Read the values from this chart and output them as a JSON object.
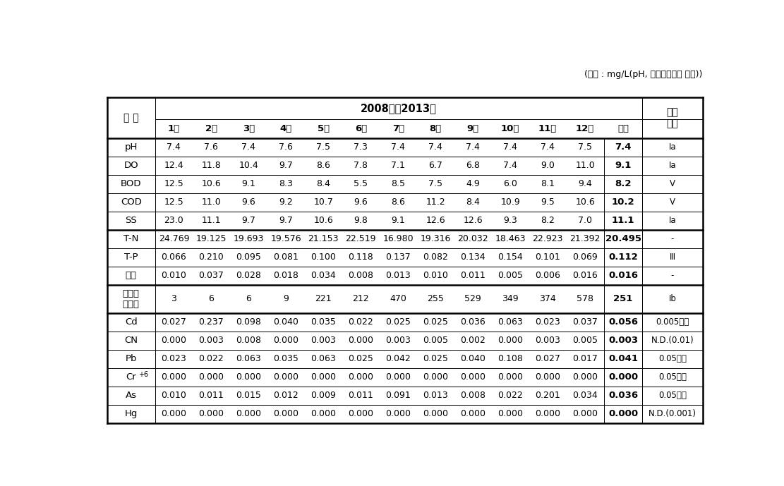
{
  "title_note": "(단위 : mg/L(pH, 총대장균군수 제외))",
  "header_year": "2008년＾2013년",
  "col_header_left": "구 분",
  "col_months": [
    "1월",
    "2월",
    "3월",
    "4월",
    "5월",
    "6월",
    "7월",
    "8월",
    "9월",
    "10월",
    "11월",
    "12월",
    "평균"
  ],
  "col_env": "환경\n기준",
  "rows": [
    [
      "pH",
      "7.4",
      "7.6",
      "7.4",
      "7.6",
      "7.5",
      "7.3",
      "7.4",
      "7.4",
      "7.4",
      "7.4",
      "7.4",
      "7.5",
      "7.4",
      "Ⅰa"
    ],
    [
      "DO",
      "12.4",
      "11.8",
      "10.4",
      "9.7",
      "8.6",
      "7.8",
      "7.1",
      "6.7",
      "6.8",
      "7.4",
      "9.0",
      "11.0",
      "9.1",
      "Ⅰa"
    ],
    [
      "BOD",
      "12.5",
      "10.6",
      "9.1",
      "8.3",
      "8.4",
      "5.5",
      "8.5",
      "7.5",
      "4.9",
      "6.0",
      "8.1",
      "9.4",
      "8.2",
      "V"
    ],
    [
      "COD",
      "12.5",
      "11.0",
      "9.6",
      "9.2",
      "10.7",
      "9.6",
      "8.6",
      "11.2",
      "8.4",
      "10.9",
      "9.5",
      "10.6",
      "10.2",
      "V"
    ],
    [
      "SS",
      "23.0",
      "11.1",
      "9.7",
      "9.7",
      "10.6",
      "9.8",
      "9.1",
      "12.6",
      "12.6",
      "9.3",
      "8.2",
      "7.0",
      "11.1",
      "Ⅰa"
    ],
    [
      "T-N",
      "24.769",
      "19.125",
      "19.693",
      "19.576",
      "21.153",
      "22.519",
      "16.980",
      "19.316",
      "20.032",
      "18.463",
      "22.923",
      "21.392",
      "20.495",
      "-"
    ],
    [
      "T-P",
      "0.066",
      "0.210",
      "0.095",
      "0.081",
      "0.100",
      "0.118",
      "0.137",
      "0.082",
      "0.134",
      "0.154",
      "0.101",
      "0.069",
      "0.112",
      "Ⅲ"
    ],
    [
      "페놀",
      "0.010",
      "0.037",
      "0.028",
      "0.018",
      "0.034",
      "0.008",
      "0.013",
      "0.010",
      "0.011",
      "0.005",
      "0.006",
      "0.016",
      "0.016",
      "-"
    ],
    [
      "총대장\n균군수",
      "3",
      "6",
      "6",
      "9",
      "221",
      "212",
      "470",
      "255",
      "529",
      "349",
      "374",
      "578",
      "251",
      "Ⅰb"
    ],
    [
      "Cd",
      "0.027",
      "0.237",
      "0.098",
      "0.040",
      "0.035",
      "0.022",
      "0.025",
      "0.025",
      "0.036",
      "0.063",
      "0.023",
      "0.037",
      "0.056",
      "0.005이하"
    ],
    [
      "CN",
      "0.000",
      "0.003",
      "0.008",
      "0.000",
      "0.003",
      "0.000",
      "0.003",
      "0.005",
      "0.002",
      "0.000",
      "0.003",
      "0.005",
      "0.003",
      "N.D.(0.01)"
    ],
    [
      "Pb",
      "0.023",
      "0.022",
      "0.063",
      "0.035",
      "0.063",
      "0.025",
      "0.042",
      "0.025",
      "0.040",
      "0.108",
      "0.027",
      "0.017",
      "0.041",
      "0.05이하"
    ],
    [
      "Cr+6",
      "0.000",
      "0.000",
      "0.000",
      "0.000",
      "0.000",
      "0.000",
      "0.000",
      "0.000",
      "0.000",
      "0.000",
      "0.000",
      "0.000",
      "0.000",
      "0.05이하"
    ],
    [
      "As",
      "0.010",
      "0.011",
      "0.015",
      "0.012",
      "0.009",
      "0.011",
      "0.091",
      "0.013",
      "0.008",
      "0.022",
      "0.201",
      "0.034",
      "0.036",
      "0.05이하"
    ],
    [
      "Hg",
      "0.000",
      "0.000",
      "0.000",
      "0.000",
      "0.000",
      "0.000",
      "0.000",
      "0.000",
      "0.000",
      "0.000",
      "0.000",
      "0.000",
      "0.000",
      "N.D.(0.001)"
    ]
  ],
  "bold_col_idx": 13,
  "thick_after_rows": [
    4,
    7,
    8
  ],
  "background_color": "#ffffff",
  "text_color": "#000000",
  "line_color": "#000000"
}
